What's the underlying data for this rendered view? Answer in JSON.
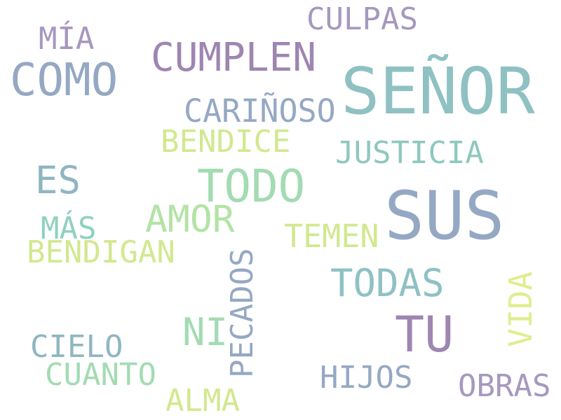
{
  "palette": {
    "mauve": "#9e86b0",
    "slate": "#95a8c3",
    "teal": "#8fc1c3",
    "mint": "#a3dbb3",
    "lime": "#d2e88f"
  },
  "words": [
    {
      "id": "culpas",
      "text": "CULPAS",
      "color": "#a698be"
    },
    {
      "id": "mia",
      "text": "MÍA",
      "color": "#a698be"
    },
    {
      "id": "cumplen",
      "text": "CUMPLEN",
      "color": "#9e86b0"
    },
    {
      "id": "senor",
      "text": "SEÑOR",
      "color": "#8fc1c3"
    },
    {
      "id": "como",
      "text": "COMO",
      "color": "#95a8c3"
    },
    {
      "id": "carinoso",
      "text": "CARIÑOSO",
      "color": "#95a8c3"
    },
    {
      "id": "bendice",
      "text": "BENDICE",
      "color": "#d2e88f"
    },
    {
      "id": "justicia",
      "text": "JUSTICIA",
      "color": "#8fc8be"
    },
    {
      "id": "es",
      "text": "ES",
      "color": "#8fb6c2"
    },
    {
      "id": "todo",
      "text": "TODO",
      "color": "#a3dbb3"
    },
    {
      "id": "sus",
      "text": "SUS",
      "color": "#95a8c3"
    },
    {
      "id": "amor",
      "text": "AMOR",
      "color": "#b3e3a6"
    },
    {
      "id": "mas",
      "text": "MÁS",
      "color": "#8fd1c0"
    },
    {
      "id": "temen",
      "text": "TEMEN",
      "color": "#d2e88f"
    },
    {
      "id": "bendigan",
      "text": "BENDIGAN",
      "color": "#d2e88f"
    },
    {
      "id": "pecados",
      "text": "PECADOS",
      "color": "#95a8c3"
    },
    {
      "id": "todas",
      "text": "TODAS",
      "color": "#8fc1c3"
    },
    {
      "id": "vida",
      "text": "VIDA",
      "color": "#e1ed8f"
    },
    {
      "id": "tu",
      "text": "TU",
      "color": "#9e86b0"
    },
    {
      "id": "ni",
      "text": "NI",
      "color": "#a3dbb3"
    },
    {
      "id": "cielo",
      "text": "CIELO",
      "color": "#8fb6c2"
    },
    {
      "id": "cuanto",
      "text": "CUANTO",
      "color": "#a3dbb3"
    },
    {
      "id": "hijos",
      "text": "HIJOS",
      "color": "#95a8c3"
    },
    {
      "id": "obras",
      "text": "OBRAS",
      "color": "#a698be"
    },
    {
      "id": "alma",
      "text": "ALMA",
      "color": "#d2e88f"
    }
  ]
}
